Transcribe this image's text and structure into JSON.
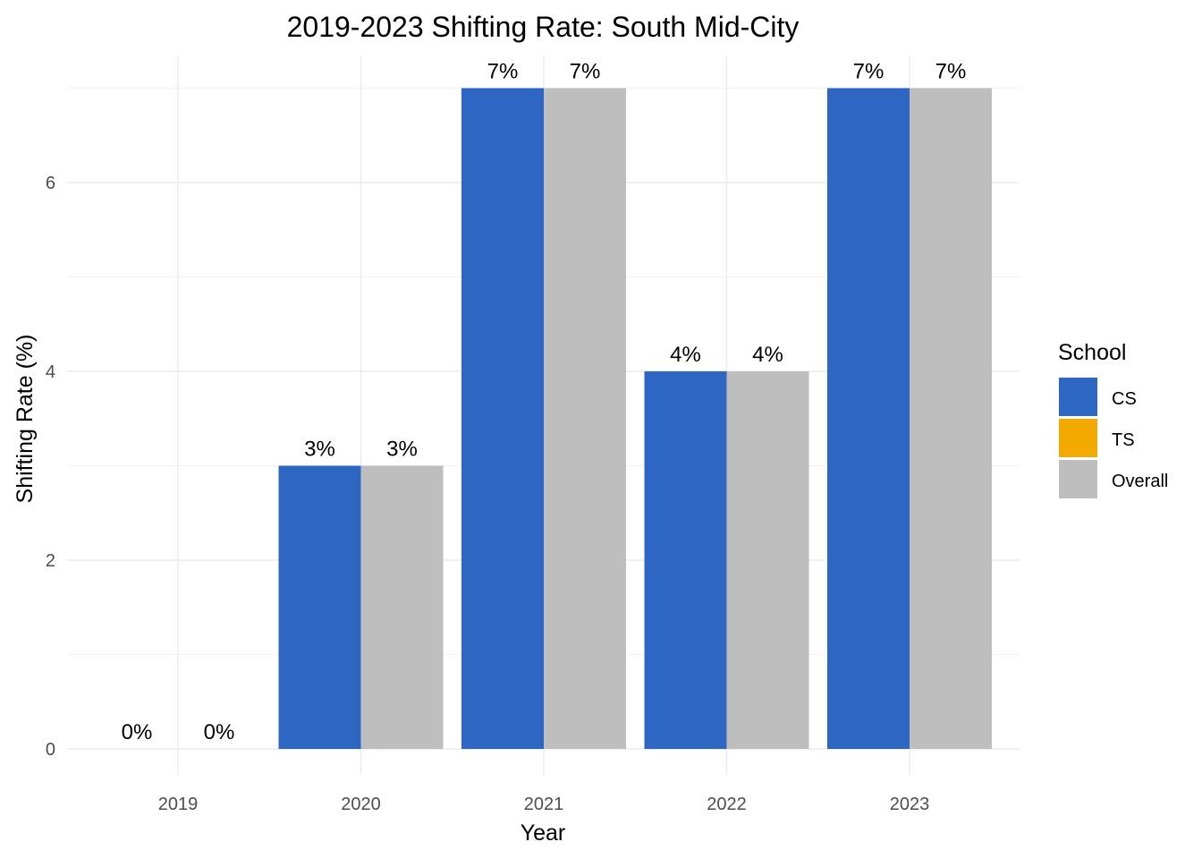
{
  "chart_data": {
    "type": "bar",
    "title": "2019-2023 Shifting Rate: South Mid-City",
    "xlabel": "Year",
    "ylabel": "Shifting Rate (%)",
    "categories": [
      "2019",
      "2020",
      "2021",
      "2022",
      "2023"
    ],
    "ylim": [
      0,
      7
    ],
    "y_ticks": [
      0,
      2,
      4,
      6
    ],
    "grid": true,
    "legend_position": "right",
    "legend_title": "School",
    "legend": [
      {
        "name": "CS",
        "color": "#2e67c3"
      },
      {
        "name": "TS",
        "color": "#f2a900"
      },
      {
        "name": "Overall",
        "color": "#bebebe"
      }
    ],
    "series": [
      {
        "name": "CS",
        "color": "#2e67c3",
        "values": [
          0,
          3,
          7,
          4,
          7
        ],
        "labels": [
          "0%",
          "3%",
          "7%",
          "4%",
          "7%"
        ]
      },
      {
        "name": "Overall",
        "color": "#bebebe",
        "values": [
          0,
          3,
          7,
          4,
          7
        ],
        "labels": [
          "0%",
          "3%",
          "7%",
          "4%",
          "7%"
        ]
      }
    ]
  }
}
